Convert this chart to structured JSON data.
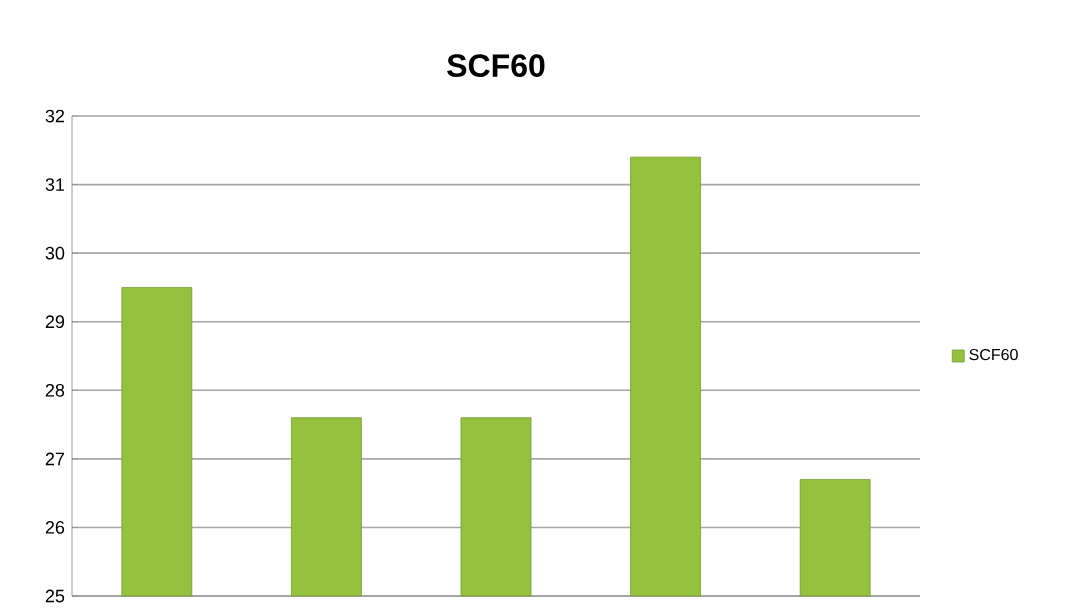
{
  "chart_data": {
    "type": "bar",
    "title": "SCF60",
    "categories": [
      null,
      null,
      null,
      null,
      null
    ],
    "series": [
      {
        "name": "SCF60",
        "color": "#94c13e",
        "values": [
          29.5,
          27.6,
          27.6,
          31.4,
          26.7
        ]
      }
    ],
    "ylim": [
      25,
      32
    ],
    "yticks": [
      25,
      26,
      27,
      28,
      29,
      30,
      31,
      32
    ],
    "grid": "y",
    "legend": "right",
    "tick_labels": "y"
  }
}
